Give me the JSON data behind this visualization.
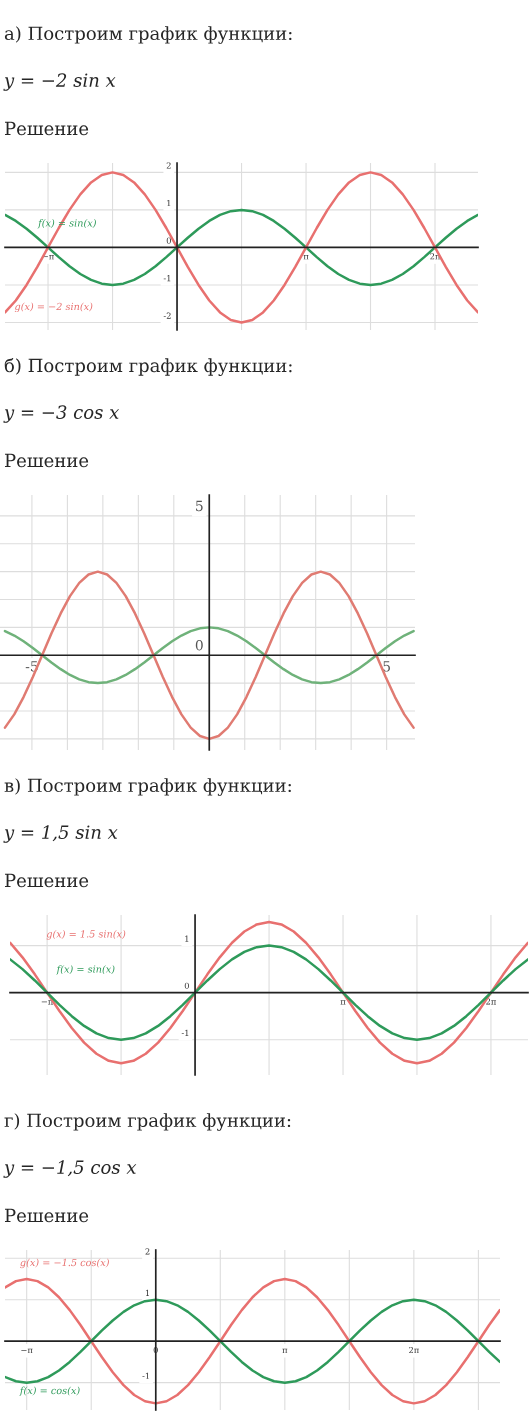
{
  "chart_data": [
    {
      "type": "line",
      "title": "а) Построим график функции:",
      "subtitle": "y = −2 sin x",
      "annotations": [
        "Решение"
      ],
      "x": [
        -4.189,
        -3.927,
        -3.665,
        -3.403,
        -3.142,
        -2.88,
        -2.618,
        -2.356,
        -2.094,
        -1.833,
        -1.571,
        -1.309,
        -1.047,
        -0.785,
        -0.524,
        -0.262,
        0,
        0.262,
        0.524,
        0.785,
        1.047,
        1.309,
        1.571,
        1.833,
        2.094,
        2.356,
        2.618,
        2.88,
        3.142,
        3.403,
        3.665,
        3.927,
        4.189,
        4.451,
        4.712,
        4.974,
        5.236,
        5.498,
        5.76,
        6.021,
        6.283,
        6.545,
        6.807,
        7.069,
        7.33
      ],
      "series": [
        {
          "name": "f(x) = sin(x)",
          "color": "#2e9a5a",
          "values": [
            0.866,
            0.707,
            0.5,
            0.259,
            0,
            -0.259,
            -0.5,
            -0.707,
            -0.866,
            -0.966,
            -1,
            -0.966,
            -0.866,
            -0.707,
            -0.5,
            -0.259,
            0,
            0.259,
            0.5,
            0.707,
            0.866,
            0.966,
            1,
            0.966,
            0.866,
            0.707,
            0.5,
            0.259,
            0,
            -0.259,
            -0.5,
            -0.707,
            -0.866,
            -0.966,
            -1,
            -0.966,
            -0.866,
            -0.707,
            -0.5,
            -0.259,
            0,
            0.259,
            0.5,
            0.707,
            0.866
          ]
        },
        {
          "name": "g(x) = −2 sin(x)",
          "color": "#e8706f",
          "values": [
            -1.732,
            -1.414,
            -1,
            -0.518,
            0,
            0.518,
            1,
            1.414,
            1.732,
            1.932,
            2,
            1.932,
            1.732,
            1.414,
            1,
            0.518,
            0,
            -0.518,
            -1,
            -1.414,
            -1.732,
            -1.932,
            -2,
            -1.932,
            -1.732,
            -1.414,
            -1,
            -0.518,
            0,
            0.518,
            1,
            1.414,
            1.732,
            1.932,
            2,
            1.932,
            1.732,
            1.414,
            1,
            0.518,
            0,
            -0.518,
            -1,
            -1.414,
            -1.732
          ]
        }
      ],
      "xlim": [
        -4.19,
        7.33
      ],
      "ylim": [
        -2.2,
        2.25
      ],
      "xticks": [
        {
          "value": -3.142,
          "label": "−π"
        },
        {
          "value": -1.571,
          "label": null
        },
        {
          "value": 0,
          "label": null
        },
        {
          "value": 1.571,
          "label": null
        },
        {
          "value": 3.142,
          "label": "π"
        },
        {
          "value": 4.712,
          "label": null
        },
        {
          "value": 6.283,
          "label": "2π"
        }
      ],
      "yticks": [
        -2,
        -1,
        0,
        1,
        2
      ],
      "grid": true
    },
    {
      "type": "line",
      "title": "б) Построим график функции:",
      "subtitle": "y = −3 cos x",
      "annotations": [
        "Решение"
      ],
      "x": [
        -5.76,
        -5.498,
        -5.236,
        -4.974,
        -4.712,
        -4.451,
        -4.189,
        -3.927,
        -3.665,
        -3.403,
        -3.142,
        -2.88,
        -2.618,
        -2.356,
        -2.094,
        -1.833,
        -1.571,
        -1.309,
        -1.047,
        -0.785,
        -0.524,
        -0.262,
        0,
        0.262,
        0.524,
        0.785,
        1.047,
        1.309,
        1.571,
        1.833,
        2.094,
        2.356,
        2.618,
        2.88,
        3.142,
        3.403,
        3.665,
        3.927,
        4.189,
        4.451,
        4.712,
        4.974,
        5.236,
        5.498,
        5.76
      ],
      "series": [
        {
          "color": "#6fb27a",
          "values": [
            0.866,
            0.707,
            0.5,
            0.259,
            0,
            -0.259,
            -0.5,
            -0.707,
            -0.866,
            -0.966,
            -1,
            -0.966,
            -0.866,
            -0.707,
            -0.5,
            -0.259,
            0,
            0.259,
            0.5,
            0.707,
            0.866,
            0.966,
            1,
            0.966,
            0.866,
            0.707,
            0.5,
            0.259,
            0,
            -0.259,
            -0.5,
            -0.707,
            -0.866,
            -0.966,
            -1,
            -0.966,
            -0.866,
            -0.707,
            -0.5,
            -0.259,
            0,
            0.259,
            0.5,
            0.707,
            0.866
          ]
        },
        {
          "color": "#e07b72",
          "values": [
            -2.598,
            -2.121,
            -1.5,
            -0.777,
            0,
            0.777,
            1.5,
            2.121,
            2.598,
            2.898,
            3,
            2.898,
            2.598,
            2.121,
            1.5,
            0.777,
            0,
            -0.777,
            -1.5,
            -2.121,
            -2.598,
            -2.898,
            -3,
            -2.898,
            -2.598,
            -2.121,
            -1.5,
            -0.777,
            0,
            0.777,
            1.5,
            2.121,
            2.598,
            2.898,
            3,
            2.898,
            2.598,
            2.121,
            1.5,
            0.777,
            0,
            -0.777,
            -1.5,
            -2.121,
            -2.598
          ]
        }
      ],
      "xlim": [
        -5.9,
        5.8
      ],
      "ylim": [
        -3.4,
        5.75
      ],
      "xticks": [
        -5,
        {
          "value": -4,
          "label": null
        },
        {
          "value": -3,
          "label": null
        },
        {
          "value": -2,
          "label": null
        },
        {
          "value": -1,
          "label": null
        },
        {
          "value": 0,
          "label": null
        },
        {
          "value": 1,
          "label": null
        },
        {
          "value": 2,
          "label": null
        },
        {
          "value": 3,
          "label": null
        },
        {
          "value": 4,
          "label": null
        },
        5
      ],
      "yticks": [
        {
          "value": -3,
          "label": null
        },
        {
          "value": -2,
          "label": null
        },
        {
          "value": -1,
          "label": null
        },
        0,
        {
          "value": 1,
          "label": null
        },
        {
          "value": 2,
          "label": null
        },
        {
          "value": 3,
          "label": null
        },
        {
          "value": 4,
          "label": null
        },
        5
      ],
      "grid": true
    },
    {
      "type": "line",
      "title": "в) Построим график функции:",
      "subtitle": "y = 1,5 sin x",
      "annotations": [
        "Решение"
      ],
      "x": [
        -3.927,
        -3.665,
        -3.403,
        -3.142,
        -2.88,
        -2.618,
        -2.356,
        -2.094,
        -1.833,
        -1.571,
        -1.309,
        -1.047,
        -0.785,
        -0.524,
        -0.262,
        0,
        0.262,
        0.524,
        0.785,
        1.047,
        1.309,
        1.571,
        1.833,
        2.094,
        2.356,
        2.618,
        2.88,
        3.142,
        3.403,
        3.665,
        3.927,
        4.189,
        4.451,
        4.712,
        4.974,
        5.236,
        5.498,
        5.76,
        6.021,
        6.283,
        6.545,
        6.807,
        7.069
      ],
      "series": [
        {
          "name": "g(x) = 1.5 sin(x)",
          "color": "#e8706f",
          "values": [
            1.061,
            0.75,
            0.389,
            0,
            -0.389,
            -0.75,
            -1.061,
            -1.299,
            -1.449,
            -1.5,
            -1.449,
            -1.299,
            -1.061,
            -0.75,
            -0.389,
            0,
            0.389,
            0.75,
            1.061,
            1.299,
            1.449,
            1.5,
            1.449,
            1.299,
            1.061,
            0.75,
            0.389,
            0,
            -0.389,
            -0.75,
            -1.061,
            -1.299,
            -1.449,
            -1.5,
            -1.449,
            -1.299,
            -1.061,
            -0.75,
            -0.389,
            0,
            0.389,
            0.75,
            1.061
          ]
        },
        {
          "name": "f(x) = sin(x)",
          "color": "#2e9a5a",
          "values": [
            0.707,
            0.5,
            0.259,
            0,
            -0.259,
            -0.5,
            -0.707,
            -0.866,
            -0.966,
            -1,
            -0.966,
            -0.866,
            -0.707,
            -0.5,
            -0.259,
            0,
            0.259,
            0.5,
            0.707,
            0.866,
            0.966,
            1,
            0.966,
            0.866,
            0.707,
            0.5,
            0.259,
            0,
            -0.259,
            -0.5,
            -0.707,
            -0.866,
            -0.966,
            -1,
            -0.966,
            -0.866,
            -0.707,
            -0.5,
            -0.259,
            0,
            0.259,
            0.5,
            0.707
          ]
        }
      ],
      "xlim": [
        -3.93,
        7.07
      ],
      "ylim": [
        -1.75,
        1.65
      ],
      "xticks": [
        {
          "value": -3.142,
          "label": "−π"
        },
        {
          "value": -1.571,
          "label": null
        },
        {
          "value": 0,
          "label": null
        },
        {
          "value": 1.571,
          "label": null
        },
        {
          "value": 3.142,
          "label": "π"
        },
        {
          "value": 4.712,
          "label": null
        },
        {
          "value": 6.283,
          "label": "2π"
        }
      ],
      "yticks": [
        -1,
        0,
        1
      ],
      "grid": true
    },
    {
      "type": "line",
      "title": "г) Построим график функции:",
      "subtitle": "y = −1,5 cos x",
      "annotations": [
        "Решение"
      ],
      "x": [
        -3.665,
        -3.403,
        -3.142,
        -2.88,
        -2.618,
        -2.356,
        -2.094,
        -1.833,
        -1.571,
        -1.309,
        -1.047,
        -0.785,
        -0.524,
        -0.262,
        0,
        0.262,
        0.524,
        0.785,
        1.047,
        1.309,
        1.571,
        1.833,
        2.094,
        2.356,
        2.618,
        2.88,
        3.142,
        3.403,
        3.665,
        3.927,
        4.189,
        4.451,
        4.712,
        4.974,
        5.236,
        5.498,
        5.76,
        6.021,
        6.283,
        6.545,
        6.807,
        7.069,
        7.33,
        7.592,
        7.854,
        8.116,
        8.378
      ],
      "series": [
        {
          "name": "g(x) = −1.5 cos(x)",
          "color": "#e8706f",
          "values": [
            1.299,
            1.449,
            1.5,
            1.449,
            1.299,
            1.061,
            0.75,
            0.389,
            0,
            -0.389,
            -0.75,
            -1.061,
            -1.299,
            -1.449,
            -1.5,
            -1.449,
            -1.299,
            -1.061,
            -0.75,
            -0.389,
            0,
            0.389,
            0.75,
            1.061,
            1.299,
            1.449,
            1.5,
            1.449,
            1.299,
            1.061,
            0.75,
            0.389,
            0,
            -0.389,
            -0.75,
            -1.061,
            -1.299,
            -1.449,
            -1.5,
            -1.449,
            -1.299,
            -1.061,
            -0.75,
            -0.389,
            0,
            0.389,
            0.75
          ]
        },
        {
          "name": "f(x) = cos(x)",
          "color": "#2e9a5a",
          "values": [
            -0.866,
            -0.966,
            -1,
            -0.966,
            -0.866,
            -0.707,
            -0.5,
            -0.259,
            0,
            0.259,
            0.5,
            0.707,
            0.866,
            0.966,
            1,
            0.966,
            0.866,
            0.707,
            0.5,
            0.259,
            0,
            -0.259,
            -0.5,
            -0.707,
            -0.866,
            -0.966,
            -1,
            -0.966,
            -0.866,
            -0.707,
            -0.5,
            -0.259,
            0,
            0.259,
            0.5,
            0.707,
            0.866,
            0.966,
            1,
            0.966,
            0.866,
            0.707,
            0.5,
            0.259,
            0,
            -0.259,
            -0.5
          ]
        }
      ],
      "xlim": [
        -3.67,
        8.38
      ],
      "ylim": [
        -1.66,
        2.2
      ],
      "xticks": [
        {
          "value": -3.142,
          "label": "−π"
        },
        {
          "value": -1.571,
          "label": null
        },
        {
          "value": 0,
          "label": "0"
        },
        {
          "value": 1.571,
          "label": null
        },
        {
          "value": 3.142,
          "label": "π"
        },
        {
          "value": 4.712,
          "label": null
        },
        {
          "value": 6.283,
          "label": "2π"
        },
        {
          "value": 7.854,
          "label": null
        }
      ],
      "yticks": [
        -1,
        1,
        2
      ],
      "grid": true
    }
  ]
}
